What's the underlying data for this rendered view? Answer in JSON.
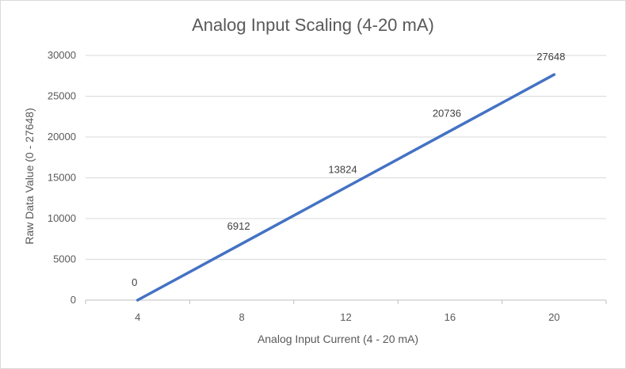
{
  "chart_data": {
    "type": "line",
    "title": "Analog Input Scaling (4-20 mA)",
    "xlabel": "Analog Input Current (4 - 20 mA)",
    "ylabel": "Raw Data Value (0 - 27648)",
    "x": [
      4,
      8,
      12,
      16,
      20
    ],
    "x_ticks": [
      4,
      8,
      12,
      16,
      20
    ],
    "y_ticks": [
      0,
      5000,
      10000,
      15000,
      20000,
      25000,
      30000
    ],
    "ylim": [
      0,
      30000
    ],
    "series": [
      {
        "values": [
          0,
          6912,
          13824,
          20736,
          27648
        ],
        "color": "#4472c4"
      }
    ],
    "data_labels": [
      "0",
      "6912",
      "13824",
      "20736",
      "27648"
    ],
    "grid": "horizontal",
    "legend": "none"
  }
}
